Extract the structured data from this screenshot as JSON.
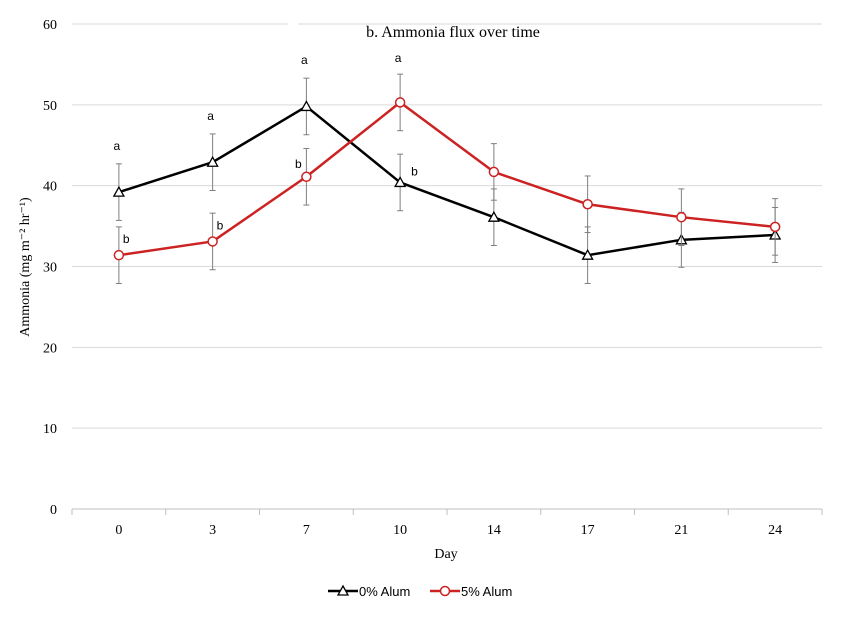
{
  "chart_data": {
    "type": "line",
    "title": "b. Ammonia flux over time",
    "xlabel": "Day",
    "ylabel": "Ammonia (mg m⁻² hr⁻¹)",
    "categories": [
      "0",
      "3",
      "7",
      "10",
      "14",
      "17",
      "21",
      "24"
    ],
    "ylim": [
      0,
      60
    ],
    "yticks": [
      0,
      10,
      20,
      30,
      40,
      50,
      60
    ],
    "grid": true,
    "legend_position": "bottom",
    "series": [
      {
        "name": "0% Alum",
        "color": "#000000",
        "marker": "triangle",
        "values": [
          39.2,
          42.9,
          49.8,
          40.4,
          36.1,
          31.4,
          33.3,
          33.9
        ],
        "errors": [
          3.5,
          3.5,
          3.5,
          3.5,
          3.5,
          3.5,
          3.4,
          3.4
        ],
        "sig_labels": [
          "a",
          "a",
          "a",
          "b",
          "",
          "",
          "",
          ""
        ]
      },
      {
        "name": "5% Alum",
        "color": "#cc2222",
        "marker": "circle",
        "values": [
          31.4,
          33.1,
          41.1,
          50.3,
          41.7,
          37.7,
          36.1,
          34.9
        ],
        "errors": [
          3.5,
          3.5,
          3.5,
          3.5,
          3.5,
          3.5,
          3.5,
          3.5
        ],
        "sig_labels": [
          "b",
          "b",
          "b",
          "a",
          "",
          "",
          "",
          ""
        ]
      }
    ]
  }
}
